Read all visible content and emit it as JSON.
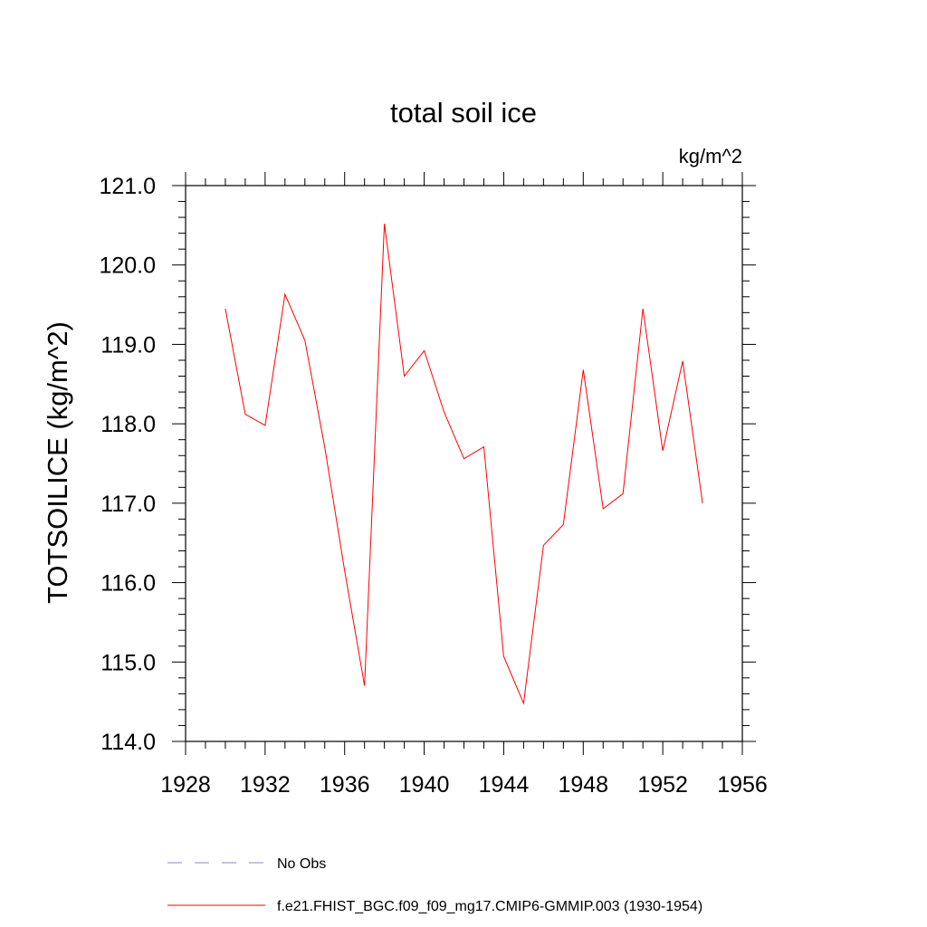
{
  "chart_data": {
    "type": "line",
    "title": "total soil ice",
    "units_label": "kg/m^2",
    "xlabel": "",
    "ylabel": "TOTSOILICE  (kg/m^2)",
    "xlim": [
      1928,
      1956
    ],
    "ylim": [
      114.0,
      121.0
    ],
    "x_ticks": [
      "1928",
      "1932",
      "1936",
      "1940",
      "1944",
      "1948",
      "1952",
      "1956"
    ],
    "y_ticks": [
      "114.0",
      "115.0",
      "116.0",
      "117.0",
      "118.0",
      "119.0",
      "120.0",
      "121.0"
    ],
    "grid": false,
    "series": [
      {
        "name": "f.e21.FHIST_BGC.f09_f09_mg17.CMIP6-GMMIP.003 (1930-1954)",
        "color": "#ff0000",
        "x": [
          1930,
          1931,
          1932,
          1933,
          1934,
          1935,
          1936,
          1937,
          1938,
          1939,
          1940,
          1941,
          1942,
          1943,
          1944,
          1945,
          1946,
          1947,
          1948,
          1949,
          1950,
          1951,
          1952,
          1953,
          1954
        ],
        "y": [
          119.45,
          118.12,
          117.98,
          119.63,
          119.05,
          117.7,
          116.15,
          114.7,
          120.52,
          118.6,
          118.92,
          118.15,
          117.56,
          117.71,
          115.07,
          114.48,
          116.47,
          116.73,
          118.68,
          116.93,
          117.12,
          119.45,
          117.66,
          118.79,
          117.0
        ]
      }
    ],
    "legend": {
      "placement": "bottom",
      "entries": [
        {
          "label": "No Obs",
          "style": "dashed",
          "color": "#8888cc"
        },
        {
          "label": "f.e21.FHIST_BGC.f09_f09_mg17.CMIP6-GMMIP.003 (1930-1954)",
          "style": "solid",
          "color": "#ff0000"
        }
      ]
    }
  }
}
